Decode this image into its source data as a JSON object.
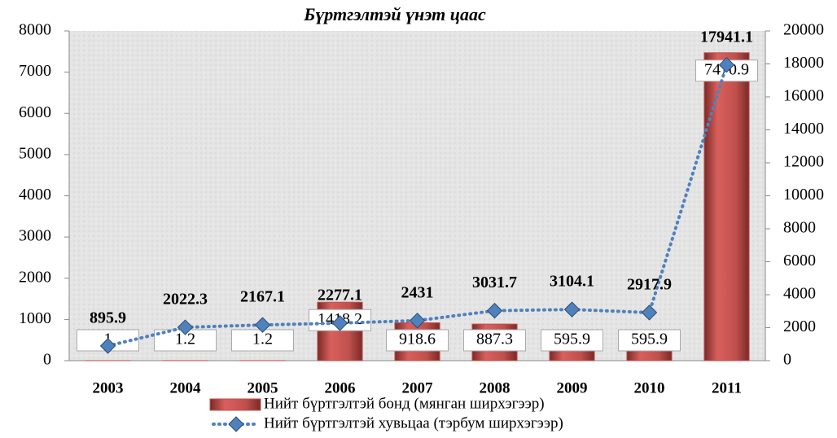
{
  "chart_data": {
    "type": "bar-line",
    "title": "Бүртгэлтэй үнэт цаас",
    "categories": [
      "2003",
      "2004",
      "2005",
      "2006",
      "2007",
      "2008",
      "2009",
      "2010",
      "2011"
    ],
    "series": [
      {
        "name": "Нийт бүртгэлтэй бонд (мянган ширхэгээр)",
        "color": "#c0504d",
        "type": "bar",
        "axis": "y",
        "values": [
          1,
          1.2,
          1.2,
          1418.2,
          918.6,
          887.3,
          595.9,
          595.9,
          7470.9
        ]
      },
      {
        "name": "Нийт бүртгэлтэй хувьцаа (тэрбум ширхэгээр)",
        "color": "#4f81bd",
        "type": "line",
        "axis": "y2",
        "values": [
          895.9,
          2022.3,
          2167.1,
          2277.1,
          2431,
          3031.7,
          3104.1,
          2917.9,
          17941.1
        ]
      }
    ],
    "ylim": [
      0,
      8000
    ],
    "yticks": [
      0,
      1000,
      2000,
      3000,
      4000,
      5000,
      6000,
      7000,
      8000
    ],
    "y2lim": [
      0,
      20000
    ],
    "y2ticks": [
      0,
      2000,
      4000,
      6000,
      8000,
      10000,
      12000,
      14000,
      16000,
      18000,
      20000
    ],
    "legend": "bottom"
  }
}
